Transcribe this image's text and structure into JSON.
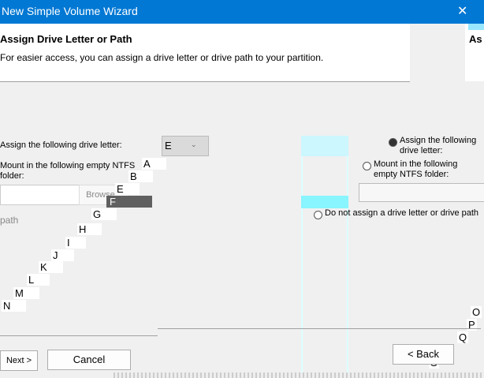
{
  "window": {
    "title": "New Simple Volume Wizard",
    "close": "✕"
  },
  "header": {
    "title": "Assign Drive Letter or Path",
    "subtitle": "For easier access, you can assign a drive letter or drive path to your partition.",
    "title_clipped": "As"
  },
  "options": {
    "assign_letter_label": "Assign the following drive letter:",
    "mount_label": "Mount in the following empty NTFS folder:",
    "no_assign_label": "Do not assign a drive letter or drive path",
    "selected": "assign"
  },
  "drive_letter": {
    "value": "E",
    "options": [
      "A",
      "B",
      "E",
      "F",
      "G",
      "H",
      "I",
      "J",
      "K",
      "L",
      "M",
      "N",
      "O",
      "P",
      "Q",
      "R",
      "S"
    ],
    "highlighted": "F"
  },
  "browse_label": "Browse...",
  "buttons": {
    "back": "< Back",
    "next": "Next >",
    "cancel": "Cancel"
  },
  "colors": {
    "titlebar": "#0078d4",
    "highlight": "#606060"
  }
}
